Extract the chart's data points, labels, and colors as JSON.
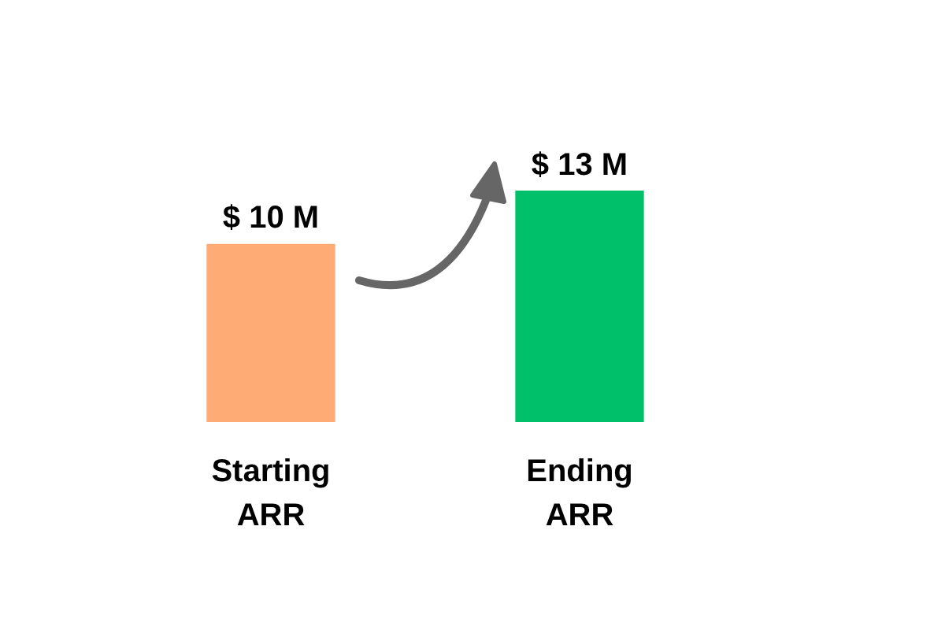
{
  "chart_data": {
    "type": "bar",
    "categories": [
      "Starting ARR",
      "Ending ARR"
    ],
    "values": [
      10,
      13
    ],
    "colors": [
      "#ffab76",
      "#00c16a"
    ],
    "value_labels": [
      "$ 10 M",
      "$ 13 M"
    ],
    "grid": false,
    "legend": false
  }
}
